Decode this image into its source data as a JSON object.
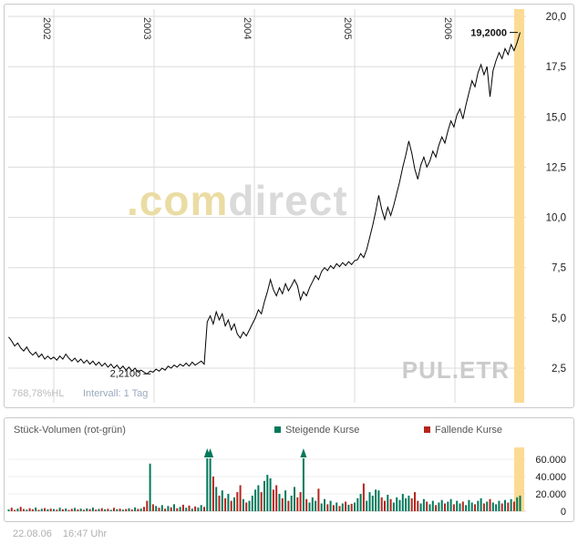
{
  "colors": {
    "up": "#00795B",
    "down": "#B5251D",
    "band": "#FBDB94",
    "grid": "#DBDBDB",
    "line": "#000000",
    "axis_text": "#1A1A1A",
    "muted": "#BCBCBC",
    "interval_text": "#9AAABE",
    "watermark_com": "#EBDCA4",
    "watermark_direct": "#DADADA",
    "symbol_watermark": "#CBCBCB",
    "annotation": "#1A1A1A"
  },
  "main_chart": {
    "y_tick_labels": [
      "20,0",
      "17,5",
      "15,0",
      "12,5",
      "10,0",
      "7,5",
      "5,0",
      "2,5"
    ],
    "x_tick_labels": [
      "2002",
      "2003",
      "2004",
      "2005",
      "2006"
    ],
    "low_label": "2,2100",
    "high_label": "19,2000",
    "hl_label": "768,78%HL",
    "interval_label": "Intervall: 1 Tag",
    "symbol": "PUL.ETR",
    "watermark": {
      "prefix": ".com",
      "suffix": "direct"
    }
  },
  "volume_chart": {
    "title": "Stück-Volumen (rot-grün)",
    "legend_up": "Steigende Kurse",
    "legend_down": "Fallende Kurse",
    "y_tick_labels": [
      "60.000",
      "40.000",
      "20.000",
      "0"
    ]
  },
  "footer": {
    "date": "22.08.06",
    "time": "16:47 Uhr"
  },
  "chart_data": [
    {
      "type": "line",
      "title": "PUL.ETR Tageskurs",
      "x_unit": "year",
      "x_start": 2001.55,
      "x_step": 0.03,
      "xlim": [
        2001.53,
        2006.68
      ],
      "ylim": [
        0.8,
        20.3
      ],
      "grid": true,
      "x_ticks": [
        2002,
        2003,
        2004,
        2005,
        2006
      ],
      "y_ticks": [
        2.5,
        5.0,
        7.5,
        10.0,
        12.5,
        15.0,
        17.5,
        20.0
      ],
      "last_value": 19.2,
      "low_value": 2.21,
      "annotations": [
        {
          "text": "19,2000",
          "value": 19.2,
          "position": "last"
        },
        {
          "text": "2,2100",
          "value": 2.21,
          "position": "low"
        }
      ],
      "values": [
        4.05,
        3.85,
        3.6,
        3.75,
        3.5,
        3.35,
        3.55,
        3.3,
        3.15,
        3.3,
        3.05,
        3.2,
        2.95,
        3.1,
        2.95,
        3.05,
        2.9,
        3.1,
        2.95,
        3.2,
        3.0,
        2.85,
        3.0,
        2.8,
        2.95,
        2.75,
        2.9,
        2.7,
        2.85,
        2.65,
        2.8,
        2.6,
        2.75,
        2.55,
        2.7,
        2.5,
        2.65,
        2.45,
        2.6,
        2.4,
        2.55,
        2.35,
        2.5,
        2.3,
        2.4,
        2.3,
        2.21,
        2.35,
        2.3,
        2.45,
        2.35,
        2.5,
        2.4,
        2.6,
        2.5,
        2.65,
        2.55,
        2.7,
        2.6,
        2.75,
        2.6,
        2.8,
        2.65,
        2.75,
        2.85,
        2.7,
        4.8,
        5.1,
        4.7,
        5.3,
        4.9,
        5.2,
        4.6,
        4.9,
        4.4,
        4.7,
        4.2,
        4.0,
        4.3,
        4.1,
        4.4,
        4.7,
        5.0,
        5.4,
        5.2,
        5.8,
        6.3,
        6.9,
        6.4,
        6.1,
        6.5,
        6.2,
        6.7,
        6.35,
        6.6,
        6.9,
        6.6,
        5.9,
        6.3,
        6.1,
        6.5,
        6.8,
        7.1,
        6.9,
        7.3,
        7.5,
        7.35,
        7.6,
        7.45,
        7.7,
        7.55,
        7.75,
        7.6,
        7.8,
        7.65,
        7.85,
        7.9,
        8.2,
        8.0,
        8.4,
        9.0,
        9.6,
        10.3,
        11.1,
        10.4,
        9.9,
        10.5,
        10.1,
        10.6,
        11.2,
        11.8,
        12.5,
        13.1,
        13.8,
        13.2,
        12.4,
        11.9,
        12.6,
        13.0,
        12.5,
        12.8,
        13.3,
        13.0,
        13.6,
        14.0,
        13.7,
        14.3,
        14.8,
        14.5,
        15.1,
        15.4,
        14.9,
        15.6,
        16.2,
        16.8,
        16.5,
        17.2,
        17.6,
        17.1,
        17.5,
        16.0,
        17.3,
        17.8,
        18.2,
        17.9,
        18.4,
        18.1,
        18.6,
        18.3,
        18.7,
        19.2
      ]
    },
    {
      "type": "bar",
      "title": "Stück-Volumen (rot-grün)",
      "x_start": 2001.55,
      "x_step": 0.03,
      "ylim": [
        0,
        68000
      ],
      "y_ticks": [
        0,
        20000,
        40000,
        60000
      ],
      "color_rule": "green bar when price rose vs previous day, red when it fell; arrows mark bars clipped above scale",
      "values": [
        2000,
        4000,
        1500,
        3000,
        5000,
        2500,
        1800,
        3500,
        2200,
        4200,
        1600,
        2800,
        3600,
        2100,
        3000,
        2500,
        1800,
        4000,
        2200,
        3200,
        1500,
        2700,
        3800,
        2000,
        2900,
        1700,
        3300,
        2400,
        4100,
        1900,
        2600,
        3500,
        2100,
        2800,
        1600,
        3900,
        2300,
        3000,
        1800,
        2500,
        3400,
        2000,
        4300,
        2600,
        3100,
        5000,
        12000,
        55000,
        8000,
        6000,
        4000,
        7000,
        3000,
        6000,
        4500,
        8000,
        3500,
        5000,
        7500,
        4000,
        6500,
        3000,
        5500,
        4200,
        7000,
        5000,
        80000,
        85000,
        40000,
        28000,
        18000,
        24000,
        15000,
        20000,
        12000,
        16000,
        22000,
        30000,
        14000,
        10000,
        12000,
        18000,
        25000,
        30000,
        22000,
        35000,
        42000,
        38000,
        25000,
        30000,
        20000,
        15000,
        24000,
        12000,
        18000,
        28000,
        16000,
        22000,
        75000,
        14000,
        10000,
        16000,
        12000,
        26000,
        9000,
        14000,
        8000,
        12000,
        7000,
        10000,
        6000,
        9000,
        11000,
        7500,
        8500,
        10000,
        15000,
        20000,
        32000,
        12000,
        22000,
        18000,
        25000,
        24000,
        16000,
        12000,
        19000,
        14000,
        10000,
        16000,
        13000,
        20000,
        15000,
        18000,
        15000,
        22000,
        12000,
        9000,
        14000,
        11000,
        8000,
        12000,
        7000,
        10000,
        13000,
        9000,
        11000,
        14000,
        8000,
        12000,
        9000,
        11000,
        7000,
        13000,
        10000,
        8000,
        12000,
        15000,
        9000,
        11000,
        14000,
        10000,
        8000,
        12000,
        9000,
        13000,
        10000,
        14000,
        11000,
        16000,
        18000
      ]
    }
  ]
}
